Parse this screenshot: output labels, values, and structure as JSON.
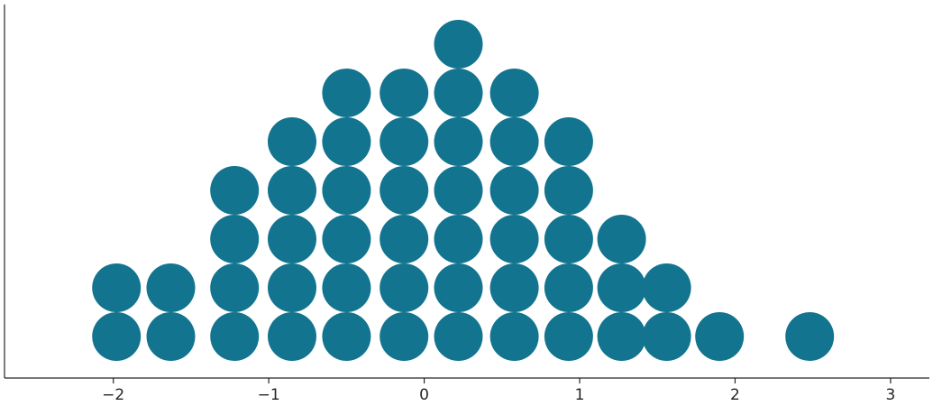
{
  "chart_data": {
    "type": "scatter",
    "subtype": "dot-plot",
    "title": "",
    "xlabel": "",
    "ylabel": "",
    "xlim": [
      -2.7,
      3.25
    ],
    "y_axis_ticks": false,
    "grid": false,
    "marker_color": "#12748f",
    "x_ticks": [
      -2,
      -1,
      0,
      1,
      2,
      3
    ],
    "x_tick_labels": [
      "−2",
      "−1",
      "0",
      "1",
      "2",
      "3"
    ],
    "columns": [
      {
        "x": -1.98,
        "count": 2
      },
      {
        "x": -1.63,
        "count": 2
      },
      {
        "x": -1.22,
        "count": 4
      },
      {
        "x": -0.85,
        "count": 5
      },
      {
        "x": -0.5,
        "count": 6
      },
      {
        "x": -0.13,
        "count": 6
      },
      {
        "x": 0.22,
        "count": 7
      },
      {
        "x": 0.58,
        "count": 6
      },
      {
        "x": 0.93,
        "count": 5
      },
      {
        "x": 1.27,
        "count": 3
      },
      {
        "x": 1.56,
        "count": 2
      },
      {
        "x": 1.9,
        "count": 1
      },
      {
        "x": 2.48,
        "count": 1
      }
    ]
  }
}
